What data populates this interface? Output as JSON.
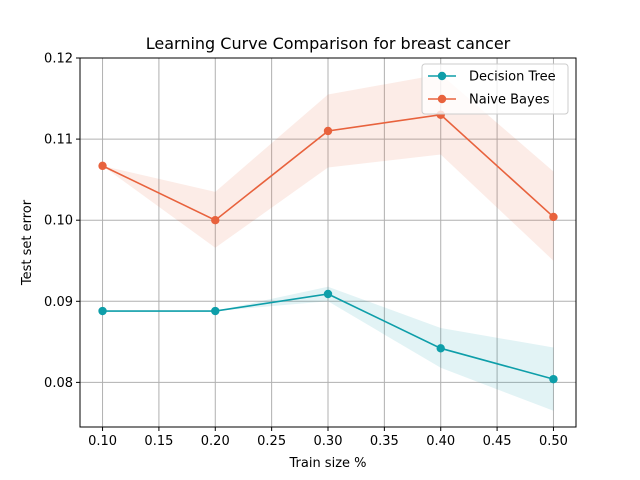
{
  "chart_data": {
    "type": "line",
    "title": "Learning Curve Comparison for breast cancer",
    "xlabel": "Train size %",
    "ylabel": "Test set error",
    "x": [
      0.1,
      0.2,
      0.3,
      0.4,
      0.5
    ],
    "xlim": [
      0.08,
      0.52
    ],
    "ylim": [
      0.0745,
      0.12
    ],
    "xticks": [
      "0.10",
      "0.15",
      "0.20",
      "0.25",
      "0.30",
      "0.35",
      "0.40",
      "0.45",
      "0.50"
    ],
    "xtick_values": [
      0.1,
      0.15,
      0.2,
      0.25,
      0.3,
      0.35,
      0.4,
      0.45,
      0.5
    ],
    "yticks": [
      "0.08",
      "0.09",
      "0.10",
      "0.11",
      "0.12"
    ],
    "ytick_values": [
      0.08,
      0.09,
      0.1,
      0.11,
      0.12
    ],
    "grid": true,
    "legend_position": "upper right",
    "series": [
      {
        "name": "Decision Tree",
        "color": "#0e9ea9",
        "values": [
          0.0888,
          0.0888,
          0.0909,
          0.0842,
          0.0804
        ],
        "band_upper": [
          0.0888,
          0.0888,
          0.0918,
          0.0867,
          0.0843
        ],
        "band_lower": [
          0.0888,
          0.0888,
          0.09,
          0.0818,
          0.0765
        ]
      },
      {
        "name": "Naive Bayes",
        "color": "#e8623d",
        "values": [
          0.1067,
          0.1,
          0.111,
          0.113,
          0.1004
        ],
        "band_upper": [
          0.1067,
          0.1035,
          0.1155,
          0.118,
          0.106
        ],
        "band_lower": [
          0.1067,
          0.0966,
          0.1065,
          0.1081,
          0.095
        ]
      }
    ]
  }
}
